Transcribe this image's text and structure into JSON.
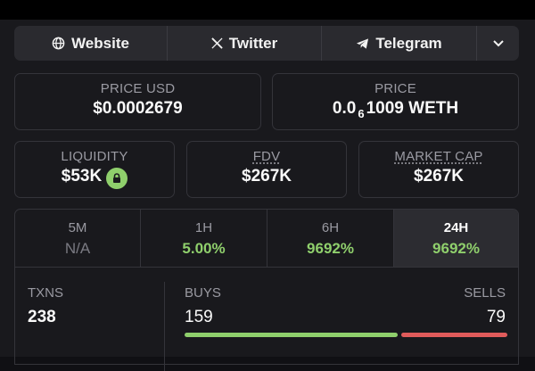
{
  "links": {
    "website": {
      "label": "Website",
      "icon": "globe-icon"
    },
    "twitter": {
      "label": "Twitter",
      "icon": "x-logo-icon"
    },
    "telegram": {
      "label": "Telegram",
      "icon": "telegram-icon"
    },
    "more": {
      "icon": "chevron-down-icon"
    }
  },
  "price_usd": {
    "label": "PRICE USD",
    "value": "$0.0002679"
  },
  "price": {
    "label": "PRICE",
    "prefix": "0.0",
    "zeros": "6",
    "digits": "1009",
    "unit": "WETH"
  },
  "liquidity": {
    "label": "LIQUIDITY",
    "value": "$53K",
    "icon": "lock-icon"
  },
  "fdv": {
    "label": "FDV",
    "value": "$267K"
  },
  "market_cap": {
    "label": "MARKET CAP",
    "value": "$267K"
  },
  "timeframes": [
    {
      "label": "5M",
      "value": "N/A",
      "active": false
    },
    {
      "label": "1H",
      "value": "5.00%",
      "active": false
    },
    {
      "label": "6H",
      "value": "9692%",
      "active": false
    },
    {
      "label": "24H",
      "value": "9692%",
      "active": true
    }
  ],
  "txns": {
    "label": "TXNS",
    "value": "238"
  },
  "buys": {
    "label": "BUYS",
    "value": "159"
  },
  "sells": {
    "label": "SELLS",
    "value": "79"
  },
  "buy_sell_ratio": {
    "buys": 159,
    "sells": 79
  },
  "colors": {
    "positive": "#8fcf6c",
    "negative": "#e05b5b",
    "background": "#19191d"
  }
}
